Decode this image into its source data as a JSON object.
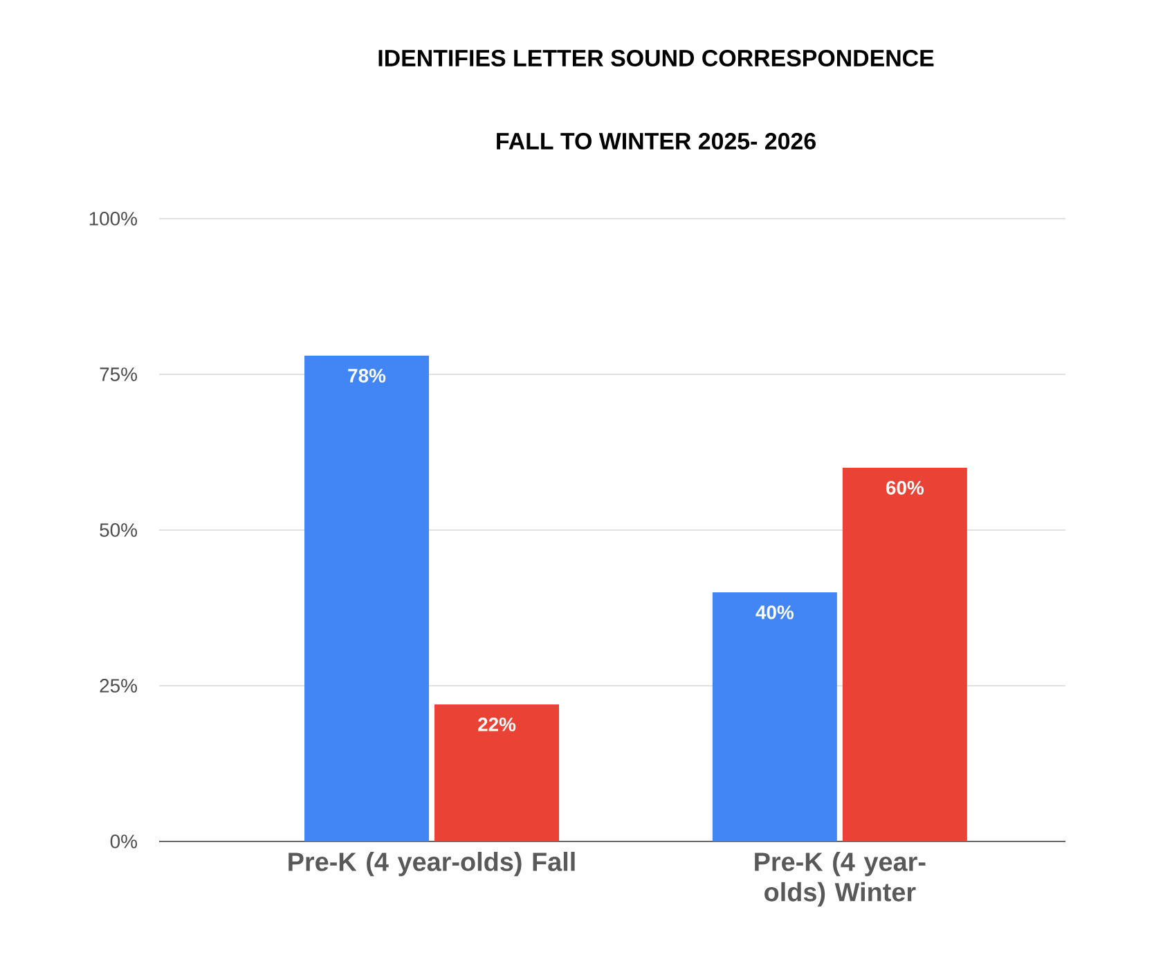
{
  "chart_data": {
    "type": "bar",
    "title": "IDENTIFIES LETTER SOUND CORRESPONDENCE",
    "subtitle": "FALL TO WINTER 2025- 2026",
    "categories": [
      "Pre-K (4 year-olds) Fall",
      "Pre-K (4 year-olds) Winter"
    ],
    "series": [
      {
        "color": "#4285f4",
        "values": [
          78,
          40
        ],
        "value_labels": [
          "78%",
          "40%"
        ]
      },
      {
        "color": "#ea4335",
        "values": [
          22,
          60
        ],
        "value_labels": [
          "22%",
          "60%"
        ]
      }
    ],
    "ylim": [
      0,
      100
    ],
    "yticks": [
      {
        "value": 0,
        "label": "0%"
      },
      {
        "value": 25,
        "label": "25%"
      },
      {
        "value": 50,
        "label": "50%"
      },
      {
        "value": 75,
        "label": "75%"
      },
      {
        "value": 100,
        "label": "100%"
      }
    ],
    "grid": "y"
  }
}
